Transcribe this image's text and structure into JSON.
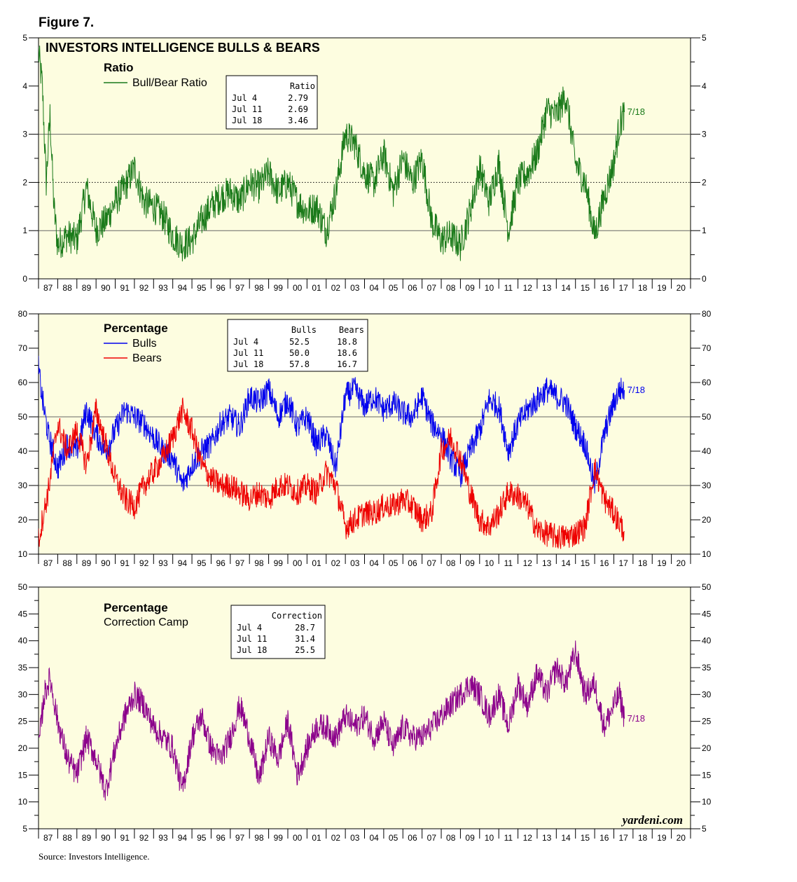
{
  "figure_label": "Figure 7.",
  "source": "Source: Investors Intelligence.",
  "watermark": "yardeni.com",
  "x_tick_labels": [
    "87",
    "88",
    "89",
    "90",
    "91",
    "92",
    "93",
    "94",
    "95",
    "96",
    "97",
    "98",
    "99",
    "00",
    "01",
    "02",
    "03",
    "04",
    "05",
    "06",
    "07",
    "08",
    "09",
    "10",
    "11",
    "12",
    "13",
    "14",
    "15",
    "16",
    "17",
    "18",
    "19",
    "20"
  ],
  "colors": {
    "ratio": "#1a7a1a",
    "bulls": "#0000ee",
    "bears": "#ee0000",
    "correction": "#8b008b",
    "plot_bg": "#fdfde0"
  },
  "chart_data": [
    {
      "id": "ratio",
      "type": "line",
      "title": "INVESTORS INTELLIGENCE BULLS & BEARS",
      "panel_title": "Ratio",
      "x_range": [
        1987,
        2021
      ],
      "ylim": [
        0,
        5
      ],
      "y_ticks": [
        "0",
        "1",
        "2",
        "3",
        "4",
        "5"
      ],
      "reference_lines": [
        {
          "value": 1,
          "style": "solid"
        },
        {
          "value": 2,
          "style": "dotted"
        },
        {
          "value": 3,
          "style": "solid"
        }
      ],
      "end_label": "7/18",
      "table": {
        "headers": [
          "Ratio"
        ],
        "rows": [
          {
            "date": "Jul  4",
            "values": [
              "2.79"
            ]
          },
          {
            "date": "Jul 11",
            "values": [
              "2.69"
            ]
          },
          {
            "date": "Jul 18",
            "values": [
              "3.46"
            ]
          }
        ]
      },
      "series": [
        {
          "name": "Bull/Bear Ratio",
          "color": "#1a7a1a",
          "x": [
            1987.0,
            1987.2,
            1987.4,
            1987.6,
            1987.8,
            1988.0,
            1988.5,
            1989.0,
            1989.5,
            1990.0,
            1990.5,
            1991.0,
            1991.5,
            1992.0,
            1992.5,
            1993.0,
            1993.5,
            1994.0,
            1994.5,
            1995.0,
            1995.5,
            1996.0,
            1996.5,
            1997.0,
            1997.5,
            1998.0,
            1998.5,
            1999.0,
            1999.5,
            2000.0,
            2000.5,
            2001.0,
            2001.5,
            2002.0,
            2002.5,
            2003.0,
            2003.5,
            2004.0,
            2004.5,
            2005.0,
            2005.5,
            2006.0,
            2006.5,
            2007.0,
            2007.5,
            2008.0,
            2008.5,
            2009.0,
            2009.5,
            2010.0,
            2010.5,
            2011.0,
            2011.5,
            2012.0,
            2012.5,
            2013.0,
            2013.5,
            2014.0,
            2014.5,
            2015.0,
            2015.5,
            2016.0,
            2016.5,
            2017.0,
            2017.3,
            2017.55
          ],
          "values": [
            4.7,
            4.0,
            2.0,
            3.4,
            1.5,
            0.7,
            0.9,
            0.8,
            1.9,
            1.0,
            1.2,
            1.6,
            1.9,
            2.3,
            1.6,
            1.5,
            1.3,
            0.9,
            0.7,
            0.8,
            1.2,
            1.5,
            1.7,
            1.8,
            1.6,
            2.0,
            1.9,
            2.2,
            1.8,
            2.0,
            1.6,
            1.4,
            1.5,
            1.0,
            1.8,
            3.0,
            2.8,
            2.2,
            2.0,
            2.6,
            1.8,
            2.5,
            2.0,
            2.5,
            1.2,
            0.8,
            0.9,
            0.7,
            1.4,
            2.3,
            1.6,
            2.4,
            1.0,
            2.0,
            2.2,
            2.6,
            3.5,
            3.4,
            3.8,
            2.4,
            2.0,
            0.9,
            1.7,
            2.4,
            3.2,
            3.46
          ]
        }
      ]
    },
    {
      "id": "bulls-bears",
      "type": "line",
      "panel_title": "Percentage",
      "x_range": [
        1987,
        2021
      ],
      "ylim": [
        10,
        80
      ],
      "y_ticks": [
        "10",
        "20",
        "30",
        "40",
        "50",
        "60",
        "70",
        "80"
      ],
      "reference_lines": [
        {
          "value": 30,
          "style": "solid"
        },
        {
          "value": 50,
          "style": "solid"
        }
      ],
      "end_label": "7/18",
      "table": {
        "headers": [
          "Bulls",
          "Bears"
        ],
        "rows": [
          {
            "date": "Jul  4",
            "values": [
              "52.5",
              "18.8"
            ]
          },
          {
            "date": "Jul 11",
            "values": [
              "50.0",
              "18.6"
            ]
          },
          {
            "date": "Jul 18",
            "values": [
              "57.8",
              "16.7"
            ]
          }
        ]
      },
      "series": [
        {
          "name": "Bulls",
          "color": "#0000ee",
          "x": [
            1987.0,
            1987.2,
            1987.5,
            1988.0,
            1988.5,
            1989.0,
            1989.5,
            1990.0,
            1990.5,
            1991.0,
            1991.5,
            1992.0,
            1992.5,
            1993.0,
            1993.5,
            1994.0,
            1994.5,
            1995.0,
            1995.5,
            1996.0,
            1996.5,
            1997.0,
            1997.5,
            1998.0,
            1998.5,
            1999.0,
            1999.5,
            2000.0,
            2000.5,
            2001.0,
            2001.5,
            2002.0,
            2002.5,
            2003.0,
            2003.5,
            2004.0,
            2004.5,
            2005.0,
            2005.5,
            2006.0,
            2006.5,
            2007.0,
            2007.5,
            2008.0,
            2008.5,
            2009.0,
            2009.5,
            2010.0,
            2010.5,
            2011.0,
            2011.5,
            2012.0,
            2012.5,
            2013.0,
            2013.5,
            2014.0,
            2014.5,
            2015.0,
            2015.5,
            2016.0,
            2016.5,
            2017.0,
            2017.3,
            2017.55
          ],
          "values": [
            64,
            55,
            45,
            35,
            42,
            40,
            52,
            45,
            40,
            46,
            52,
            50,
            48,
            44,
            40,
            38,
            30,
            36,
            40,
            42,
            48,
            50,
            47,
            56,
            54,
            58,
            50,
            55,
            47,
            50,
            42,
            45,
            35,
            56,
            58,
            53,
            56,
            52,
            54,
            51,
            50,
            56,
            48,
            45,
            38,
            33,
            40,
            46,
            55,
            53,
            40,
            48,
            52,
            55,
            58,
            56,
            54,
            47,
            42,
            30,
            45,
            54,
            58,
            57.8
          ]
        },
        {
          "name": "Bears",
          "color": "#ee0000",
          "x": [
            1987.0,
            1987.2,
            1987.5,
            1988.0,
            1988.5,
            1989.0,
            1989.5,
            1990.0,
            1990.5,
            1991.0,
            1991.5,
            1992.0,
            1992.5,
            1993.0,
            1993.5,
            1994.0,
            1994.5,
            1995.0,
            1995.5,
            1996.0,
            1996.5,
            1997.0,
            1997.5,
            1998.0,
            1998.5,
            1999.0,
            1999.5,
            2000.0,
            2000.5,
            2001.0,
            2001.5,
            2002.0,
            2002.5,
            2003.0,
            2003.5,
            2004.0,
            2004.5,
            2005.0,
            2005.5,
            2006.0,
            2006.5,
            2007.0,
            2007.5,
            2008.0,
            2008.5,
            2009.0,
            2009.5,
            2010.0,
            2010.5,
            2011.0,
            2011.5,
            2012.0,
            2012.5,
            2013.0,
            2013.5,
            2014.0,
            2014.5,
            2015.0,
            2015.5,
            2016.0,
            2016.5,
            2017.0,
            2017.3,
            2017.55
          ],
          "values": [
            14,
            20,
            28,
            48,
            40,
            46,
            36,
            52,
            42,
            32,
            26,
            24,
            30,
            34,
            38,
            44,
            52,
            46,
            36,
            32,
            30,
            30,
            28,
            26,
            28,
            26,
            30,
            30,
            28,
            30,
            28,
            34,
            30,
            18,
            20,
            22,
            22,
            24,
            24,
            26,
            24,
            20,
            22,
            40,
            44,
            38,
            28,
            20,
            18,
            22,
            28,
            27,
            24,
            17,
            16,
            15,
            15,
            16,
            18,
            35,
            26,
            22,
            19,
            16.7
          ]
        }
      ]
    },
    {
      "id": "correction",
      "type": "line",
      "panel_title": "Percentage",
      "x_range": [
        1987,
        2021
      ],
      "ylim": [
        5,
        50
      ],
      "y_ticks": [
        "5",
        "10",
        "15",
        "20",
        "25",
        "30",
        "35",
        "40",
        "45",
        "50"
      ],
      "reference_lines": [],
      "end_label": "7/18",
      "table": {
        "headers": [
          "Correction"
        ],
        "rows": [
          {
            "date": "Jul  4",
            "values": [
              "28.7"
            ]
          },
          {
            "date": "Jul 11",
            "values": [
              "31.4"
            ]
          },
          {
            "date": "Jul 18",
            "values": [
              "25.5"
            ]
          }
        ]
      },
      "series": [
        {
          "name": "Correction Camp",
          "color": "#8b008b",
          "x": [
            1987.0,
            1987.3,
            1987.6,
            1988.0,
            1988.5,
            1989.0,
            1989.5,
            1990.0,
            1990.5,
            1991.0,
            1991.5,
            1992.0,
            1992.5,
            1993.0,
            1993.5,
            1994.0,
            1994.5,
            1995.0,
            1995.5,
            1996.0,
            1996.5,
            1997.0,
            1997.5,
            1998.0,
            1998.5,
            1999.0,
            1999.5,
            2000.0,
            2000.5,
            2001.0,
            2001.5,
            2002.0,
            2002.5,
            2003.0,
            2003.5,
            2004.0,
            2004.5,
            2005.0,
            2005.5,
            2006.0,
            2006.5,
            2007.0,
            2007.5,
            2008.0,
            2008.5,
            2009.0,
            2009.5,
            2010.0,
            2010.5,
            2011.0,
            2011.5,
            2012.0,
            2012.5,
            2013.0,
            2013.5,
            2014.0,
            2014.5,
            2015.0,
            2015.5,
            2016.0,
            2016.5,
            2017.0,
            2017.3,
            2017.55
          ],
          "values": [
            20,
            30,
            33,
            25,
            18,
            15,
            22,
            18,
            12,
            20,
            26,
            30,
            28,
            24,
            22,
            20,
            12,
            22,
            26,
            20,
            18,
            22,
            28,
            22,
            14,
            22,
            18,
            25,
            15,
            20,
            24,
            24,
            22,
            26,
            24,
            26,
            22,
            25,
            20,
            24,
            22,
            22,
            24,
            26,
            28,
            30,
            32,
            30,
            26,
            30,
            24,
            32,
            28,
            34,
            30,
            35,
            32,
            38,
            30,
            32,
            24,
            28,
            30,
            25.5
          ]
        }
      ]
    }
  ],
  "legend": {
    "ratio": [
      "Bull/Bear Ratio"
    ],
    "bulls_bears": [
      "Bulls",
      "Bears"
    ],
    "correction": [
      "Correction Camp"
    ]
  }
}
